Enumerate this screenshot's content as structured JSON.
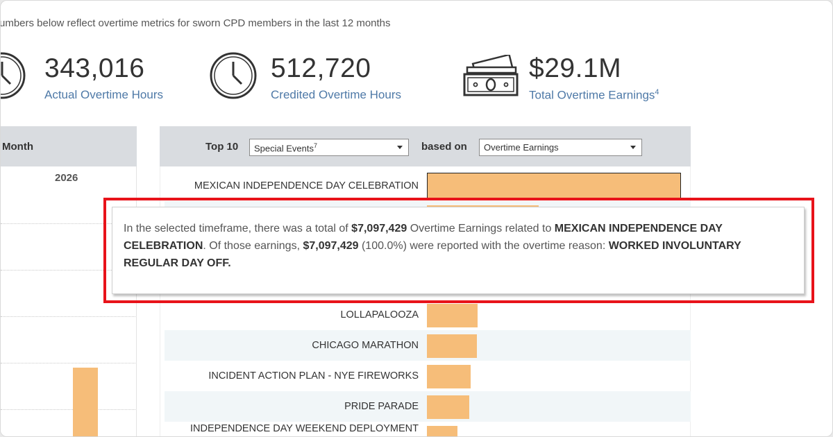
{
  "intro": "umbers below reflect overtime metrics for sworn CPD members in the last 12 months",
  "kpis": [
    {
      "value": "343,016",
      "label": "Actual Overtime Hours",
      "icon": "clock-icon"
    },
    {
      "value": "512,720",
      "label": "Credited Overtime Hours",
      "icon": "clock-icon"
    },
    {
      "value": "$29.1M",
      "label": "Total Overtime Earnings",
      "footnote": "4",
      "icon": "money-icon"
    }
  ],
  "month_panel": {
    "header": "Month",
    "year": "2026",
    "bar_color": "#f6bd79"
  },
  "top_panel": {
    "top_label": "Top 10",
    "category_select": {
      "value": "Special Events",
      "footnote": "7"
    },
    "based_on_label": "based on",
    "metric_select": {
      "value": "Overtime Earnings"
    },
    "bar_color": "#f6bd79",
    "rows": [
      {
        "label": "MEXICAN INDEPENDENCE DAY CELEBRATION",
        "value": 1.0,
        "highlighted": true
      },
      {
        "label": "",
        "value": 0.44
      },
      {
        "label": "LOLLAPALOOZA",
        "value": 0.2
      },
      {
        "label": "CHICAGO MARATHON",
        "value": 0.197
      },
      {
        "label": "INCIDENT ACTION PLAN - NYE FIREWORKS",
        "value": 0.173
      },
      {
        "label": "PRIDE PARADE",
        "value": 0.168
      },
      {
        "label": "INDEPENDENCE DAY WEEKEND DEPLOYMENT",
        "value": 0.12
      }
    ]
  },
  "tooltip": {
    "p1": "In the selected timeframe, there was a total of ",
    "amount_total": "$7,097,429",
    "p2": " Overtime Earnings related to ",
    "event": "MEXICAN INDEPENDENCE DAY CELEBRATION",
    "p3": ". Of those earnings, ",
    "amount_reason": "$7,097,429",
    "p4": " (100.0%) were reported with the overtime reason: ",
    "reason": "WORKED INVOLUNTARY REGULAR DAY OFF."
  },
  "highlight_color": "#e8131a"
}
